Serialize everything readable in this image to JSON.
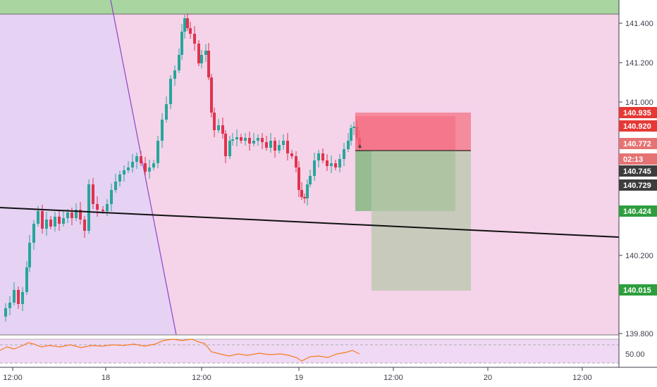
{
  "colors": {
    "up_candle": "#26a69a",
    "down_candle": "#e0334d",
    "background_zone": "#f5d3e9",
    "left_zone": "#e6d2f3",
    "top_zone": "#a8d5a0",
    "profit_zone": "#7fb77c",
    "stop_zone": "#f36d7d",
    "target_zone": "#b7c7a9",
    "rsi_line": "#f57c20"
  },
  "price_axis": {
    "ticks": [
      "141.400",
      "141.200",
      "141.000",
      "140.200",
      "139.800"
    ],
    "badges": [
      {
        "label": "140.935",
        "color": "#e53935"
      },
      {
        "label": "140.920",
        "color": "#e53935"
      },
      {
        "label": "140.772",
        "color": "#e57373"
      },
      {
        "label": "02:13",
        "color": "#e57373"
      },
      {
        "label": "140.745",
        "color": "#3d3d3d"
      },
      {
        "label": "140.729",
        "color": "#3d3d3d"
      },
      {
        "label": "140.424",
        "color": "#2e9e3e"
      },
      {
        "label": "140.015",
        "color": "#2e9e3e"
      }
    ]
  },
  "rsi_axis": {
    "ticks": [
      "50.00"
    ]
  },
  "time_axis": {
    "ticks": [
      "12:00",
      "18",
      "12:00",
      "19",
      "12:00",
      "20",
      "12:00"
    ]
  }
}
